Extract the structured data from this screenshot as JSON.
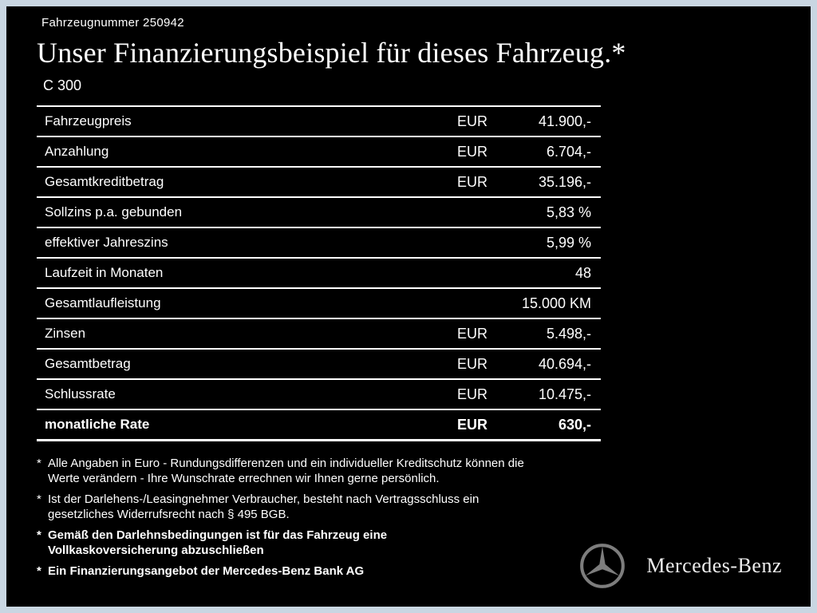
{
  "page": {
    "vehicle_number_label": "Fahrzeugnummer 250942",
    "title": "Unser Finanzierungsbeispiel für dieses Fahrzeug.*",
    "model": "C 300"
  },
  "table": {
    "rows": [
      {
        "label": "Fahrzeugpreis",
        "currency": "EUR",
        "value": "41.900,-",
        "bold": false
      },
      {
        "label": "Anzahlung",
        "currency": "EUR",
        "value": "6.704,-",
        "bold": false
      },
      {
        "label": "Gesamtkreditbetrag",
        "currency": "EUR",
        "value": "35.196,-",
        "bold": false
      },
      {
        "label": "Sollzins p.a. gebunden",
        "currency": "",
        "value": "5,83 %",
        "bold": false
      },
      {
        "label": "effektiver Jahreszins",
        "currency": "",
        "value": "5,99 %",
        "bold": false
      },
      {
        "label": "Laufzeit in Monaten",
        "currency": "",
        "value": "48",
        "bold": false
      },
      {
        "label": "Gesamtlaufleistung",
        "currency": "",
        "value": "15.000 KM",
        "bold": false
      },
      {
        "label": "Zinsen",
        "currency": "EUR",
        "value": "5.498,-",
        "bold": false
      },
      {
        "label": "Gesamtbetrag",
        "currency": "EUR",
        "value": "40.694,-",
        "bold": false
      },
      {
        "label": "Schlussrate",
        "currency": "EUR",
        "value": "10.475,-",
        "bold": false
      },
      {
        "label": "monatliche Rate",
        "currency": "EUR",
        "value": "630,-",
        "bold": true
      }
    ]
  },
  "footnotes": [
    {
      "marker": "*",
      "bold": false,
      "text": "Alle Angaben in Euro - Rundungsdifferenzen und ein individueller Kreditschutz können die\nWerte verändern - Ihre Wunschrate errechnen wir Ihnen gerne persönlich."
    },
    {
      "marker": "*",
      "bold": false,
      "text": "Ist der Darlehens-/Leasingnehmer Verbraucher, besteht nach Vertragsschluss ein\ngesetzliches Widerrufsrecht nach § 495 BGB."
    },
    {
      "marker": "*",
      "bold": true,
      "text": "Gemäß den Darlehnsbedingungen ist für das Fahrzeug eine\nVollkaskoversicherung abzuschließen"
    },
    {
      "marker": "*",
      "bold": true,
      "text": "Ein Finanzierungsangebot der Mercedes-Benz Bank AG"
    }
  ],
  "brand": {
    "name": "Mercedes-Benz",
    "logo": "mercedes-star-icon"
  },
  "colors": {
    "background": "#000000",
    "frame": "#c9d6e2",
    "text": "#ffffff",
    "line": "#ffffff",
    "logo_grey": "#7d7d7d"
  }
}
